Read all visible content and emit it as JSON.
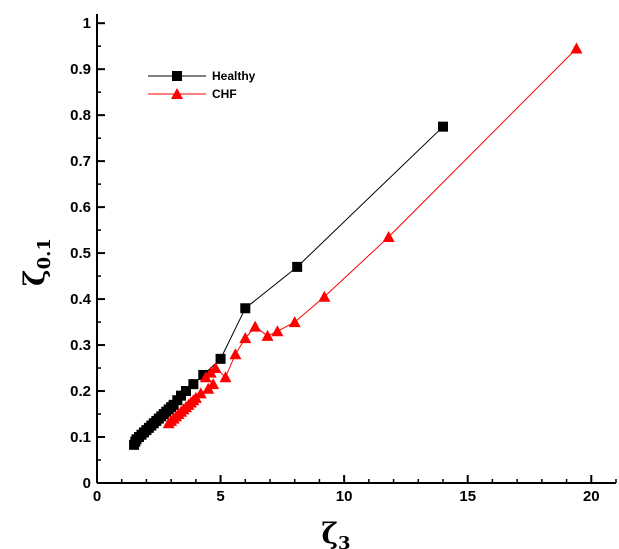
{
  "chart_data": {
    "type": "line",
    "xlabel": "ζ",
    "xlabel_sub": "3",
    "ylabel": "ζ",
    "ylabel_sub": "0.1",
    "xlim": [
      0,
      21
    ],
    "ylim": [
      0,
      1.02
    ],
    "x_ticks": [
      0,
      5,
      10,
      15,
      20
    ],
    "x_tick_labels": [
      "0",
      "5",
      "10",
      "15",
      "20"
    ],
    "y_ticks": [
      0,
      0.1,
      0.2,
      0.3,
      0.4,
      0.5,
      0.6,
      0.7,
      0.8,
      0.9,
      1
    ],
    "y_tick_labels": [
      "0",
      "0.1",
      "0.2",
      "0.3",
      "0.4",
      "0.5",
      "0.6",
      "0.7",
      "0.8",
      "0.9",
      "1"
    ],
    "grid": false,
    "legend_position": "top-left",
    "series": [
      {
        "name": "Healthy",
        "marker": "square",
        "color": "#000000",
        "x": [
          1.5,
          1.55,
          1.6,
          1.7,
          1.8,
          1.9,
          2.0,
          2.1,
          2.2,
          2.3,
          2.4,
          2.5,
          2.6,
          2.7,
          2.8,
          2.9,
          3.0,
          3.1,
          3.25,
          3.4,
          3.6,
          3.9,
          4.3,
          5.0,
          6.0,
          8.1,
          14.0
        ],
        "y": [
          0.083,
          0.09,
          0.095,
          0.1,
          0.105,
          0.11,
          0.115,
          0.12,
          0.125,
          0.13,
          0.135,
          0.14,
          0.145,
          0.15,
          0.155,
          0.16,
          0.165,
          0.17,
          0.18,
          0.19,
          0.2,
          0.215,
          0.235,
          0.27,
          0.38,
          0.47,
          0.775
        ]
      },
      {
        "name": "CHF",
        "marker": "triangle",
        "color": "#ff0000",
        "x": [
          2.9,
          3.0,
          3.1,
          3.2,
          3.3,
          3.4,
          3.5,
          3.6,
          3.7,
          3.8,
          3.9,
          4.0,
          4.2,
          4.5,
          4.7,
          4.4,
          4.6,
          4.8,
          5.2,
          5.6,
          6.0,
          6.4,
          6.9,
          7.3,
          8.0,
          9.2,
          11.8,
          19.4
        ],
        "y": [
          0.13,
          0.135,
          0.14,
          0.145,
          0.15,
          0.155,
          0.16,
          0.165,
          0.17,
          0.175,
          0.18,
          0.185,
          0.195,
          0.205,
          0.215,
          0.23,
          0.24,
          0.25,
          0.23,
          0.28,
          0.315,
          0.34,
          0.32,
          0.33,
          0.35,
          0.405,
          0.535,
          0.945
        ]
      }
    ]
  }
}
